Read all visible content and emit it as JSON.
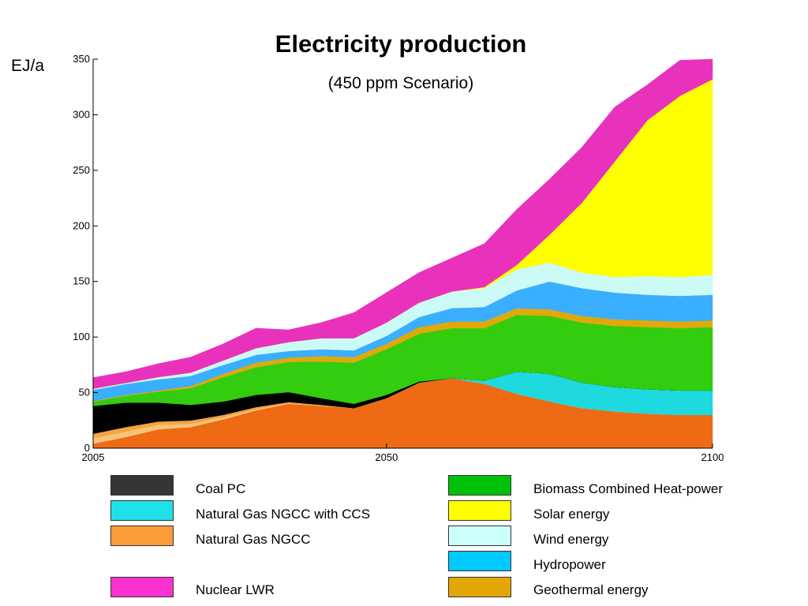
{
  "chart_data": {
    "type": "area",
    "stacked": true,
    "title": "Electricity production",
    "subtitle": "(450 ppm Scenario)",
    "ylabel": "EJ/a",
    "xlabel": "",
    "xlim": [
      2005,
      2100
    ],
    "ylim": [
      0,
      350
    ],
    "x_ticks": [
      "2005",
      "2050",
      "2100"
    ],
    "y_ticks": [
      "0",
      "50",
      "100",
      "150",
      "200",
      "250",
      "300",
      "350"
    ],
    "grid": false,
    "x": [
      2005,
      2010,
      2015,
      2020,
      2025,
      2030,
      2035,
      2040,
      2045,
      2050,
      2055,
      2060,
      2065,
      2070,
      2075,
      2080,
      2085,
      2090,
      2095,
      2100
    ],
    "series": [
      {
        "name": "Natural Gas NGCC",
        "color": "#ee6a14",
        "values": [
          4,
          10,
          17,
          19,
          26,
          34,
          40,
          38,
          36,
          45,
          59,
          63,
          58,
          49,
          42,
          36,
          33,
          31,
          30,
          30
        ]
      },
      {
        "name": "Natural Gas NGCC",
        "color": "#f5c47a",
        "values": [
          5,
          5,
          4,
          3,
          2,
          1,
          0.5,
          0,
          0,
          0,
          0,
          0,
          0,
          0,
          0,
          0,
          0,
          0,
          0,
          0
        ]
      },
      {
        "name": "Natural Gas NGCC",
        "color": "#fba33c",
        "values": [
          4,
          4,
          3,
          3,
          2,
          2,
          1,
          1,
          0,
          0,
          0,
          0,
          0,
          0,
          0,
          0,
          0,
          0,
          0,
          0
        ]
      },
      {
        "name": "Natural Gas NGCC with CCS",
        "color": "#1ed9de",
        "values": [
          0,
          0,
          0,
          0,
          0,
          0,
          0,
          0,
          0,
          0,
          0,
          0,
          3,
          20,
          25,
          23,
          22,
          22,
          22,
          22
        ]
      },
      {
        "name": "Coal PC",
        "color": "#000000",
        "values": [
          25,
          22,
          17,
          14,
          12,
          11,
          9,
          6,
          4,
          3,
          1,
          0,
          0,
          0,
          0,
          0,
          0,
          0,
          0,
          0
        ]
      },
      {
        "name": "Biomass Combined Heat-power",
        "color": "#33cc0e",
        "values": [
          4,
          6,
          10,
          15,
          22,
          25,
          27,
          33,
          37,
          41,
          43,
          45,
          47,
          51,
          52,
          54,
          55,
          56,
          56,
          57
        ]
      },
      {
        "name": "Geothermal energy",
        "color": "#e0a90a",
        "values": [
          0.5,
          0.8,
          1,
          2,
          3,
          4,
          4,
          5,
          5,
          5,
          6,
          6,
          6,
          6,
          6,
          6,
          6,
          6,
          6,
          6
        ]
      },
      {
        "name": "Hydropower",
        "color": "#3aaeff",
        "values": [
          10,
          10,
          10,
          9,
          8,
          7,
          6,
          6,
          6,
          7,
          9,
          12,
          13,
          16,
          25,
          25,
          24,
          23,
          23,
          23
        ]
      },
      {
        "name": "Wind energy",
        "color": "#ccfaf6",
        "values": [
          1,
          1,
          2,
          3,
          4,
          6,
          8,
          10,
          11,
          12,
          13,
          15,
          17,
          19,
          17,
          14,
          14,
          17,
          17,
          18
        ]
      },
      {
        "name": "Solar energy",
        "color": "#ffff00",
        "values": [
          0,
          0,
          0,
          0,
          0,
          0,
          0,
          0,
          0,
          0,
          0,
          0,
          1,
          4,
          25,
          63,
          104,
          140,
          163,
          176
        ]
      },
      {
        "name": "Nuclear LWR",
        "color": "#e832bc",
        "values": [
          10,
          10,
          12,
          14,
          15,
          18,
          11,
          14,
          23,
          27,
          27,
          30,
          39,
          50,
          50,
          50,
          49,
          32,
          32,
          18
        ]
      }
    ]
  },
  "legend": [
    {
      "label": "Coal PC",
      "color": "#353535"
    },
    {
      "label": "Natural Gas NGCC with CCS",
      "color": "#1de1e6"
    },
    {
      "label": "Natural Gas NGCC",
      "color": "#fd9c3a"
    },
    {
      "label": "Nuclear LWR",
      "color": "#fb32d0"
    },
    {
      "label": "Biomass Combined Heat-power",
      "color": "#00c10a"
    },
    {
      "label": "Solar energy",
      "color": "#ffff00"
    },
    {
      "label": "Wind energy",
      "color": "#ccfffb"
    },
    {
      "label": "Hydropower",
      "color": "#00c9fe"
    },
    {
      "label": "Geothermal energy",
      "color": "#e2a704"
    }
  ]
}
